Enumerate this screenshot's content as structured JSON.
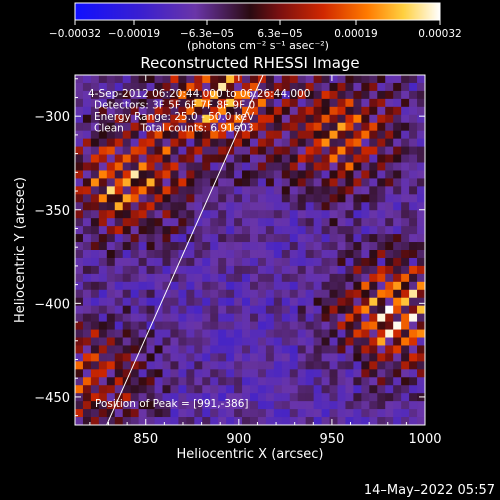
{
  "chart_data": {
    "type": "heatmap",
    "title": "Reconstructed RHESSI Image",
    "xlabel": "Heliocentric X (arcsec)",
    "ylabel": "Heliocentric Y (arcsec)",
    "xlim": [
      812,
      1000
    ],
    "ylim": [
      -465,
      -278
    ],
    "x_ticks": [
      850,
      900,
      950,
      1000
    ],
    "y_ticks": [
      -300,
      -350,
      -400,
      -450
    ],
    "x_tick_labels": [
      "850",
      "900",
      "950",
      "1000"
    ],
    "y_tick_labels": [
      "−300",
      "−350",
      "−400",
      "−450"
    ],
    "colorbar": {
      "range": [
        -0.00032,
        0.00032
      ],
      "tick_labels": [
        "−0.00032",
        "−0.00019",
        "−6.3e−05",
        "6.3e−05",
        "0.00019",
        "0.00032"
      ],
      "units_text": "(photons cm⁻² s⁻¹ asec⁻²)"
    },
    "info_lines": [
      "4-Sep-2012 06:20:44.000 to 06:26:44.000",
      "Detectors: 3F 5F 6F 7F 8F 9F 0",
      "Energy Range: 25.0 - 50.0 keV",
      "Clean     Total counts: 6.91e03"
    ],
    "peak_label": "Position of Peak = [991,-386]",
    "peak": [
      991,
      -386
    ],
    "limb_line": [
      [
        829,
        -465
      ],
      [
        913,
        -278
      ]
    ],
    "blobs": [
      {
        "x": 985,
        "y": -405,
        "amplitude": 0.00032
      },
      {
        "x": 890,
        "y": -290,
        "amplitude": 0.00028
      },
      {
        "x": 840,
        "y": -335,
        "amplitude": 0.00026
      },
      {
        "x": 955,
        "y": -310,
        "amplitude": 0.00022
      },
      {
        "x": 820,
        "y": -440,
        "amplitude": 0.00018
      }
    ],
    "background_level": -0.00012
  },
  "timestamp": "14–May–2022 05:57"
}
